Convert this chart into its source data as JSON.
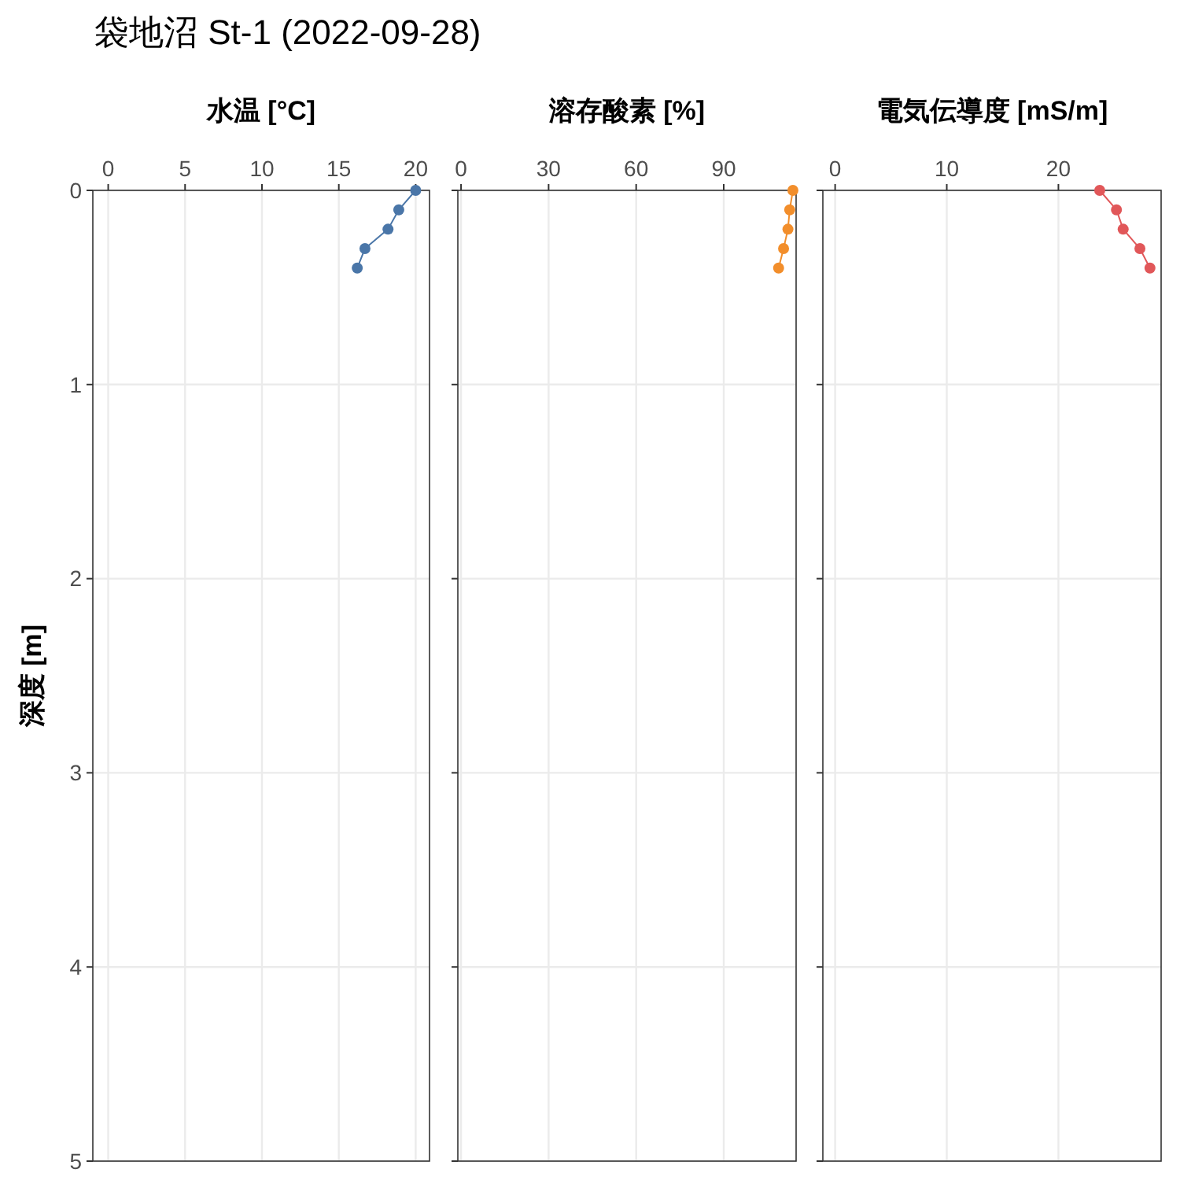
{
  "chart_data": [
    {
      "type": "line",
      "title": "袋地沼 St-1 (2022-09-28)",
      "xlabel": "水温 [°C]",
      "ylabel": "深度 [m]",
      "xlim": [
        -1,
        20.9
      ],
      "xticks": [
        0,
        5,
        10,
        15,
        20
      ],
      "ylim": [
        5,
        0
      ],
      "yticks": [
        0,
        1,
        2,
        3,
        4,
        5
      ],
      "grid": true,
      "marker": "circle",
      "series": [
        {
          "color": "#4a76a8",
          "x": [
            20.0,
            18.9,
            18.2,
            16.7,
            16.2
          ],
          "values": [
            0,
            0.1,
            0.2,
            0.3,
            0.4
          ]
        }
      ]
    },
    {
      "type": "line",
      "xlabel": "溶存酸素 [%]",
      "xlim": [
        -1.1,
        114.8
      ],
      "xticks": [
        0,
        30,
        60,
        90
      ],
      "ylim": [
        5,
        0
      ],
      "yticks": [
        0,
        1,
        2,
        3,
        4,
        5
      ],
      "grid": true,
      "marker": "circle",
      "tick_labels": "x",
      "series": [
        {
          "color": "#f28e2b",
          "x": [
            113.7,
            112.6,
            112.0,
            110.5,
            108.8
          ],
          "values": [
            0,
            0.1,
            0.2,
            0.3,
            0.4
          ]
        }
      ]
    },
    {
      "type": "line",
      "xlabel": "電気伝導度 [mS/m]",
      "xlim": [
        -1.1,
        29.2
      ],
      "xticks": [
        0,
        10,
        20
      ],
      "ylim": [
        5,
        0
      ],
      "yticks": [
        0,
        1,
        2,
        3,
        4,
        5
      ],
      "grid": true,
      "marker": "circle",
      "tick_labels": "x",
      "series": [
        {
          "color": "#e15759",
          "x": [
            23.7,
            25.2,
            25.8,
            27.3,
            28.2
          ],
          "values": [
            0,
            0.1,
            0.2,
            0.3,
            0.4
          ]
        }
      ]
    }
  ]
}
